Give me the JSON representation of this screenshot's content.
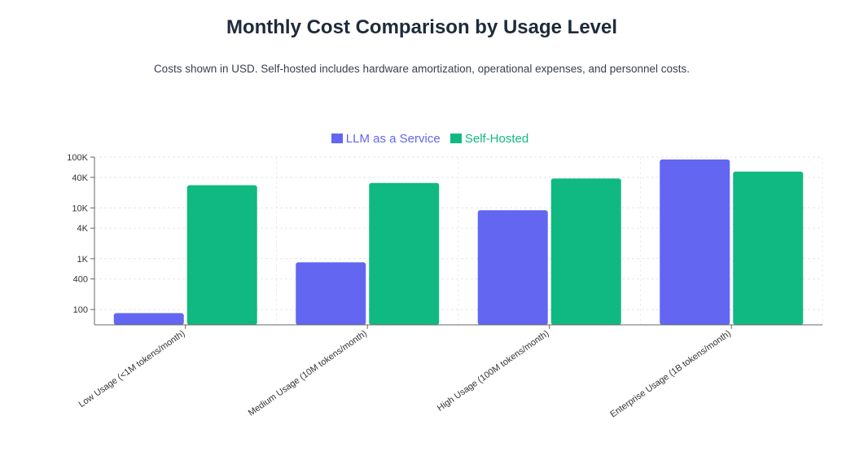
{
  "chart_data": {
    "type": "bar",
    "title": "Monthly Cost Comparison by Usage Level",
    "subtitle": "Costs shown in USD. Self-hosted includes hardware amortization, operational expenses, and personnel costs.",
    "categories": [
      "Low Usage (<1M tokens/month)",
      "Medium Usage (10M tokens/month)",
      "High Usage (100M tokens/month)",
      "Enterprise Usage (1B tokens/month)"
    ],
    "series": [
      {
        "name": "LLM as a Service",
        "color": "#6366f1",
        "values": [
          85,
          850,
          9000,
          90000
        ]
      },
      {
        "name": "Self-Hosted",
        "color": "#10b981",
        "values": [
          28000,
          31000,
          38000,
          52000
        ]
      }
    ],
    "y_scale": "log",
    "ylim": [
      50,
      100000
    ],
    "y_ticks": [
      {
        "value": 100,
        "label": "100"
      },
      {
        "value": 400,
        "label": "400"
      },
      {
        "value": 1000,
        "label": "1K"
      },
      {
        "value": 4000,
        "label": "4K"
      },
      {
        "value": 10000,
        "label": "10K"
      },
      {
        "value": 40000,
        "label": "40K"
      },
      {
        "value": 100000,
        "label": "100K"
      }
    ],
    "grid": true,
    "legend_position": "top-center"
  }
}
